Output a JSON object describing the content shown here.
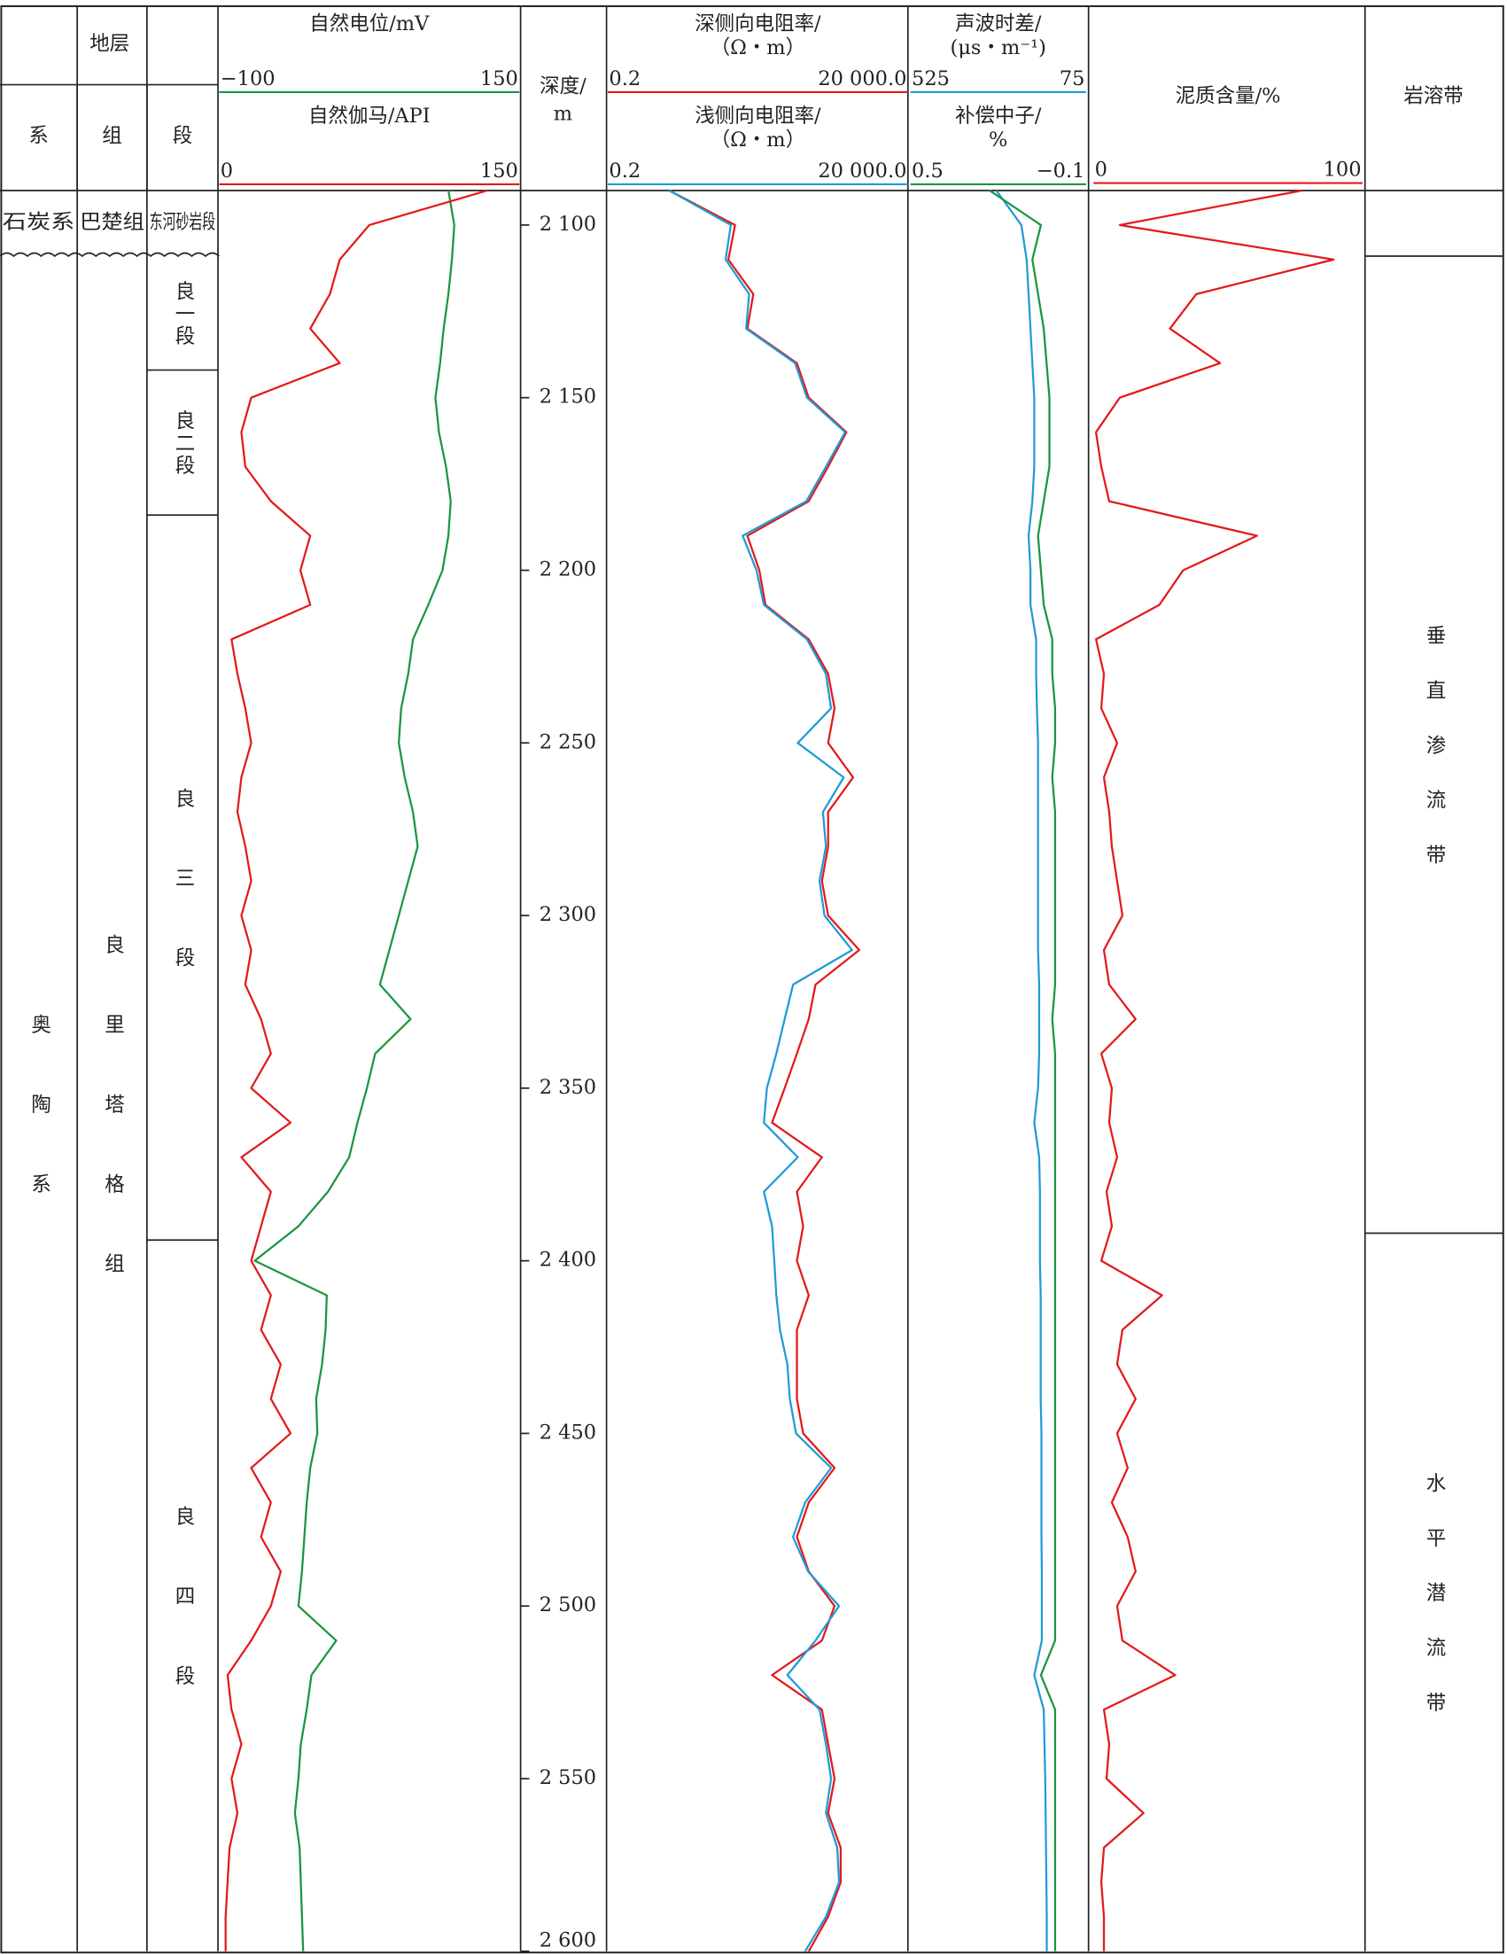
{
  "chart_data": {
    "type": "well-log",
    "strata_title": "地层",
    "strata_columns": [
      "系",
      "组",
      "段"
    ],
    "depth_title": [
      "深度/",
      "m"
    ],
    "ylim": [
      2090,
      2600
    ],
    "yticks": [
      {
        "value": 2100,
        "label": "2 100"
      },
      {
        "value": 2150,
        "label": "2 150"
      },
      {
        "value": 2200,
        "label": "2 200"
      },
      {
        "value": 2250,
        "label": "2 250"
      },
      {
        "value": 2300,
        "label": "2 300"
      },
      {
        "value": 2350,
        "label": "2 350"
      },
      {
        "value": 2400,
        "label": "2 400"
      },
      {
        "value": 2450,
        "label": "2 450"
      },
      {
        "value": 2500,
        "label": "2 500"
      },
      {
        "value": 2550,
        "label": "2 550"
      },
      {
        "value": 2600,
        "label": "2 600"
      }
    ],
    "strata": [
      [
        {
          "name": "石炭系",
          "top": 2090,
          "bottom": 2109
        },
        {
          "name": "奥陶系",
          "top": 2109,
          "bottom": 2600
        }
      ],
      [
        {
          "name": "巴楚组",
          "top": 2090,
          "bottom": 2109
        },
        {
          "name": "良里塔格组",
          "top": 2109,
          "bottom": 2600
        }
      ],
      [
        {
          "name": "东河砂岩段",
          "top": 2090,
          "bottom": 2109
        },
        {
          "name": "良一段",
          "top": 2109,
          "bottom": 2142
        },
        {
          "name": "良二段",
          "top": 2142,
          "bottom": 2184
        },
        {
          "name": "良三段",
          "top": 2184,
          "bottom": 2394
        },
        {
          "name": "良四段",
          "top": 2394,
          "bottom": 2600
        }
      ]
    ],
    "karst_title": "岩溶带",
    "karst": [
      {
        "name": "垂直渗流带",
        "top": 2109,
        "bottom": 2392
      },
      {
        "name": "水平潜流带",
        "top": 2392,
        "bottom": 2600
      }
    ],
    "depth": [
      2090,
      2100,
      2110,
      2120,
      2130,
      2140,
      2150,
      2160,
      2170,
      2180,
      2190,
      2200,
      2210,
      2220,
      2230,
      2240,
      2250,
      2260,
      2270,
      2280,
      2290,
      2300,
      2310,
      2320,
      2330,
      2340,
      2350,
      2360,
      2370,
      2380,
      2390,
      2400,
      2410,
      2420,
      2430,
      2440,
      2450,
      2460,
      2470,
      2480,
      2490,
      2500,
      2510,
      2520,
      2530,
      2540,
      2550,
      2560,
      2570,
      2580,
      2590,
      2600
    ],
    "tracks": [
      {
        "curves": [
          {
            "name": "自然电位/mV",
            "color": "#1a9641",
            "log": false,
            "scale": [
              {
                "value": -100,
                "label": "−100"
              },
              150
            ],
            "values": [
              92,
              97,
              95,
              92,
              88,
              85,
              81,
              84,
              90,
              94,
              92,
              87,
              75,
              62,
              58,
              52,
              50,
              55,
              62,
              66,
              58,
              50,
              42,
              34,
              60,
              30,
              23,
              15,
              8,
              -10,
              -35,
              -72,
              -11,
              -12,
              -15,
              -20,
              -19,
              -25,
              -28,
              -30,
              -32,
              -35,
              -3,
              -24,
              -28,
              -33,
              -35,
              -38,
              -34,
              -33,
              -32,
              -31
            ]
          },
          {
            "name": "自然伽马/API",
            "color": "#e31a1c",
            "log": false,
            "scale": [
              0,
              150
            ],
            "values": [
              135,
              75,
              60,
              55,
              45,
              60,
              15,
              10,
              12,
              25,
              45,
              40,
              45,
              5,
              8,
              12,
              15,
              10,
              8,
              12,
              15,
              10,
              15,
              12,
              20,
              25,
              15,
              35,
              10,
              25,
              20,
              15,
              25,
              20,
              30,
              25,
              35,
              15,
              25,
              20,
              30,
              25,
              15,
              3,
              5,
              10,
              5,
              8,
              4,
              3,
              2,
              2
            ]
          }
        ]
      },
      {
        "curves": [
          {
            "name": "深侧向电阻率/",
            "unit": "（Ω・m）",
            "color": "#e31a1c",
            "log": true,
            "scale": [
              0.2,
              {
                "value": 20000,
                "label": "20 000.0"
              }
            ],
            "values": [
              2,
              26,
              20,
              53,
              42,
              290,
              460,
              2000,
              980,
              460,
              42,
              67,
              85,
              460,
              980,
              1260,
              980,
              2600,
              980,
              980,
              770,
              980,
              3300,
              600,
              460,
              290,
              180,
              110,
              770,
              290,
              370,
              290,
              460,
              290,
              290,
              290,
              370,
              1260,
              460,
              290,
              460,
              1260,
              770,
              110,
              770,
              980,
              1260,
              980,
              1600,
              1600,
              980,
              460
            ]
          },
          {
            "name": "浅侧向电阻率/",
            "unit": "（Ω・m）",
            "color": "#1f9bd7",
            "log": true,
            "scale": [
              0.2,
              {
                "value": 20000,
                "label": "20 000.0"
              }
            ],
            "values": [
              2,
              22,
              18,
              45,
              40,
              270,
              430,
              1900,
              900,
              420,
              35,
              60,
              80,
              430,
              900,
              1100,
              300,
              1800,
              800,
              900,
              700,
              850,
              2500,
              250,
              180,
              130,
              90,
              80,
              300,
              80,
              110,
              120,
              130,
              150,
              200,
              220,
              280,
              1100,
              400,
              250,
              450,
              1500,
              600,
              200,
              700,
              900,
              1100,
              900,
              1400,
              1500,
              900,
              400
            ]
          }
        ]
      },
      {
        "curves": [
          {
            "name": "声波时差/",
            "unit": "(μs・m⁻¹)",
            "color": "#1f9bd7",
            "log": false,
            "scale": [
              525,
              75
            ],
            "values": [
              305,
              239,
              225,
              220,
              215,
              210,
              205,
              205,
              205,
              210,
              220,
              215,
              215,
              200,
              200,
              198,
              195,
              195,
              195,
              195,
              195,
              195,
              195,
              192,
              192,
              192,
              195,
              205,
              192,
              190,
              190,
              190,
              188,
              188,
              188,
              188,
              186,
              186,
              186,
              186,
              185,
              185,
              185,
              205,
              180,
              178,
              176,
              175,
              174,
              173,
              172,
              172
            ]
          },
          {
            "name": "补偿中子/",
            "unit": "%",
            "color": "#1a9641",
            "log": false,
            "scale": [
              0.5,
              {
                "value": -0.1,
                "label": "−0.1"
              }
            ],
            "values": [
              0.23,
              0.05,
              0.08,
              0.06,
              0.04,
              0.03,
              0.02,
              0.02,
              0.02,
              0.04,
              0.06,
              0.05,
              0.04,
              0.01,
              0.01,
              0,
              0,
              0.01,
              0,
              0,
              0,
              0,
              0,
              0,
              0.01,
              0,
              0,
              0,
              0,
              0,
              0,
              0,
              0,
              0,
              0,
              0,
              0,
              0,
              0,
              0,
              0,
              0,
              0,
              0.05,
              0,
              0,
              0,
              0,
              0,
              0,
              0,
              0
            ]
          }
        ]
      },
      {
        "curves": [
          {
            "name": "泥质含量/%",
            "color": "#e31a1c",
            "log": false,
            "scale": [
              0,
              100
            ],
            "values": [
              78,
              9,
              90,
              38,
              28,
              47,
              9,
              0,
              2,
              5,
              61,
              33,
              24,
              0,
              3,
              2,
              8,
              3,
              5,
              6,
              8,
              10,
              3,
              5,
              15,
              2,
              6,
              5,
              8,
              4,
              6,
              2,
              25,
              10,
              8,
              15,
              8,
              12,
              6,
              12,
              15,
              8,
              10,
              30,
              3,
              5,
              4,
              18,
              3,
              2,
              3,
              3
            ]
          }
        ]
      }
    ]
  }
}
